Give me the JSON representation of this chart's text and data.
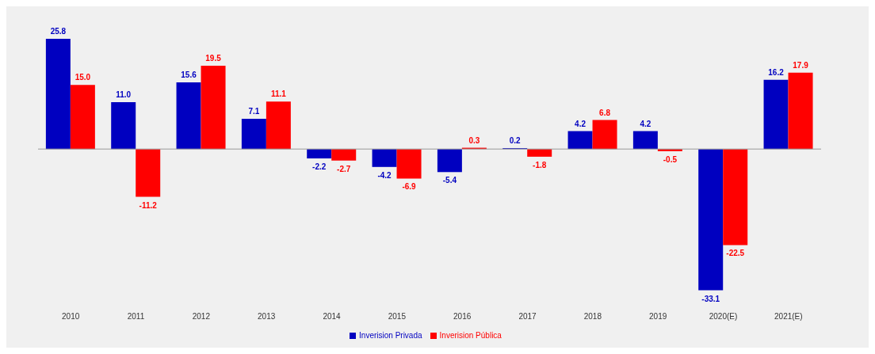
{
  "chart_data": {
    "type": "bar",
    "categories": [
      "2010",
      "2011",
      "2012",
      "2013",
      "2014",
      "2015",
      "2016",
      "2017",
      "2018",
      "2019",
      "2020(E)",
      "2021(E)"
    ],
    "series": [
      {
        "name": "Inverision Privada",
        "color": "#0000c0",
        "values": [
          25.8,
          11.0,
          15.6,
          7.1,
          -2.2,
          -4.2,
          -5.4,
          0.2,
          4.2,
          4.2,
          -33.1,
          16.2
        ],
        "value_labels": [
          "25.8",
          "11.0",
          "15.6",
          "7.1",
          "-2.2",
          "-4.2",
          "-5.4",
          "0.2",
          "4.2",
          "4.2",
          "-33.1",
          "16.2"
        ]
      },
      {
        "name": "Inverision Pública",
        "color": "#ff0000",
        "values": [
          15.0,
          -11.2,
          19.5,
          11.1,
          -2.7,
          -6.9,
          0.3,
          -1.8,
          6.8,
          -0.5,
          -22.5,
          17.9
        ],
        "value_labels": [
          "15.0",
          "-11.2",
          "19.5",
          "11.1",
          "-2.7",
          "-6.9",
          "0.3",
          "-1.8",
          "6.8",
          "-0.5",
          "-22.5",
          "17.9"
        ]
      }
    ],
    "legend": "bottom",
    "grid": false
  }
}
